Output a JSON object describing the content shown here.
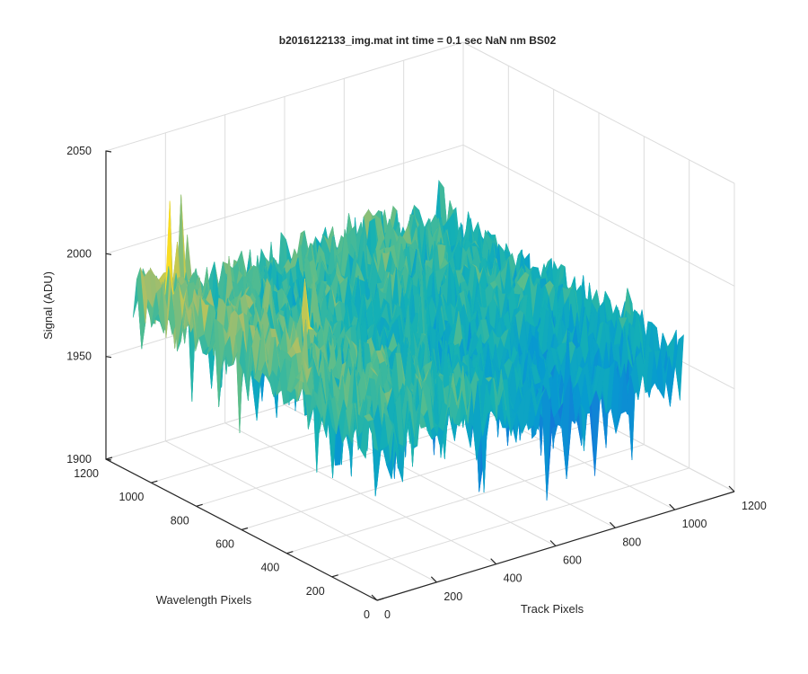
{
  "chart_data": {
    "type": "surface",
    "title": "b2016122133_img.mat int time = 0.1 sec  NaN nm BS02",
    "xlabel": "Track Pixels",
    "ylabel": "Wavelength Pixels",
    "zlabel": "Signal (ADU)",
    "xlim": [
      0,
      1200
    ],
    "ylim": [
      0,
      1200
    ],
    "zlim": [
      1900,
      2050
    ],
    "x_ticks": [
      "0",
      "200",
      "400",
      "600",
      "800",
      "1000",
      "1200"
    ],
    "y_ticks": [
      "0",
      "200",
      "400",
      "600",
      "800",
      "1000",
      "1200"
    ],
    "z_ticks": [
      "1900",
      "1950",
      "2000",
      "2050"
    ],
    "grid": true,
    "colormap": "parula",
    "surface": {
      "approx_mean_signal": 1975,
      "approx_min_signal": 1925,
      "approx_max_signal": 2030,
      "trend": "signal higher near Track Pixels 0 / Wavelength Pixels high, lower toward high Track Pixels"
    }
  }
}
